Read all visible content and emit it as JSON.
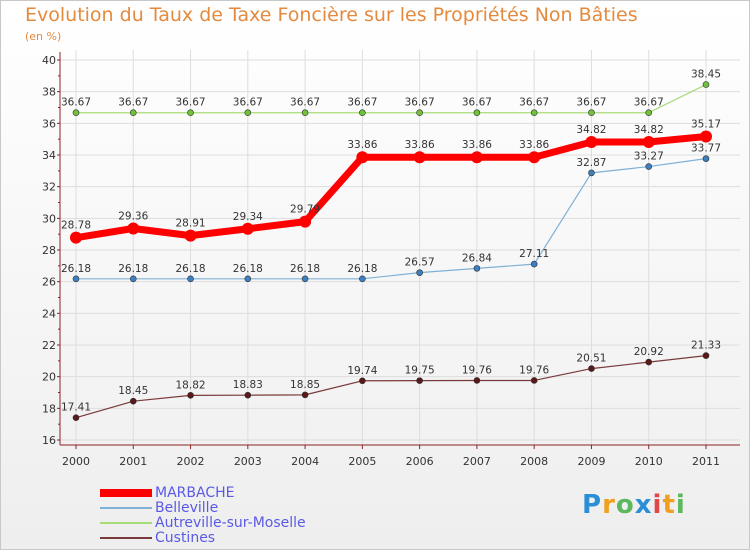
{
  "title": "Evolution du Taux de Taxe Foncière sur les Propriétés Non Bâties",
  "unit_label": "(en %)",
  "logo_text": "Proxiti",
  "colors": {
    "title": "#e48a3e",
    "legend_text": "#5a5ae6",
    "axis": "#8b2222"
  },
  "chart_data": {
    "type": "line",
    "x": [
      "2000",
      "2001",
      "2002",
      "2003",
      "2004",
      "2005",
      "2006",
      "2007",
      "2008",
      "2009",
      "2010",
      "2011"
    ],
    "ylim": [
      16,
      40
    ],
    "yticks": [
      "16",
      "18",
      "20",
      "22",
      "24",
      "26",
      "28",
      "30",
      "32",
      "34",
      "36",
      "38",
      "40"
    ],
    "grid": true,
    "legend_position": "bottom-left",
    "series": [
      {
        "name": "MARBACHE",
        "color": "#ff0000",
        "marker_color": "#ff0000",
        "emphasis": "thick",
        "values": [
          28.78,
          29.36,
          28.91,
          29.34,
          29.79,
          33.86,
          33.86,
          33.86,
          33.86,
          34.82,
          34.82,
          35.17
        ],
        "labels": [
          "28.78",
          "29.36",
          "28.91",
          "29.34",
          "29.79",
          "33.86",
          "33.86",
          "33.86",
          "33.86",
          "34.82",
          "34.82",
          "35.17"
        ]
      },
      {
        "name": "Belleville",
        "color": "#7fb0d6",
        "marker_color": "#3d7fc0",
        "emphasis": "thin",
        "values": [
          26.18,
          26.18,
          26.18,
          26.18,
          26.18,
          26.18,
          26.57,
          26.84,
          27.11,
          32.87,
          33.27,
          33.77
        ],
        "labels": [
          "26.18",
          "26.18",
          "26.18",
          "26.18",
          "26.18",
          "26.18",
          "26.57",
          "26.84",
          "27.11",
          "32.87",
          "33.27",
          "33.77"
        ]
      },
      {
        "name": "Autreville-sur-Moselle",
        "color": "#a8dc78",
        "marker_color": "#6fc23a",
        "emphasis": "thin",
        "values": [
          36.67,
          36.67,
          36.67,
          36.67,
          36.67,
          36.67,
          36.67,
          36.67,
          36.67,
          36.67,
          36.67,
          38.45
        ],
        "labels": [
          "36.67",
          "36.67",
          "36.67",
          "36.67",
          "36.67",
          "36.67",
          "36.67",
          "36.67",
          "36.67",
          "36.67",
          "36.67",
          "38.45"
        ]
      },
      {
        "name": "Custines",
        "color": "#7a3a3a",
        "marker_color": "#5a1818",
        "emphasis": "thin",
        "values": [
          17.41,
          18.45,
          18.82,
          18.83,
          18.85,
          19.74,
          19.75,
          19.76,
          19.76,
          20.51,
          20.92,
          21.33
        ],
        "labels": [
          "17.41",
          "18.45",
          "18.82",
          "18.83",
          "18.85",
          "19.74",
          "19.75",
          "19.76",
          "19.76",
          "20.51",
          "20.92",
          "21.33"
        ]
      }
    ]
  }
}
